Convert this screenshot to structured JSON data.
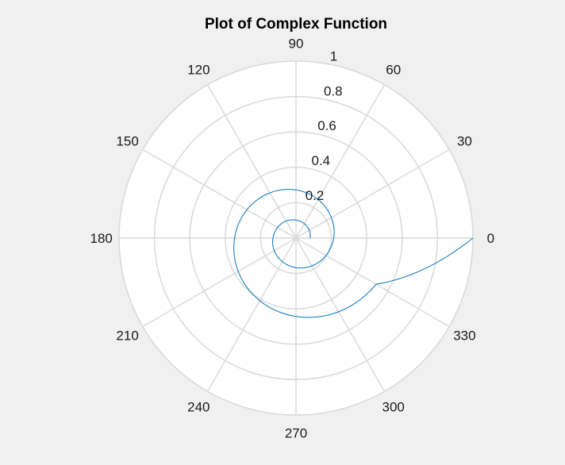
{
  "chart_data": {
    "type": "polar-line",
    "title": "Plot of Complex Function",
    "theta_ticks": [
      "0",
      "30",
      "60",
      "90",
      "120",
      "150",
      "180",
      "210",
      "240",
      "270",
      "300",
      "330"
    ],
    "theta_tick_degrees": [
      0,
      30,
      60,
      90,
      120,
      150,
      180,
      210,
      240,
      270,
      300,
      330
    ],
    "r_ticks": [
      0.2,
      0.4,
      0.6,
      0.8,
      1
    ],
    "r_tick_labels": [
      "0.2",
      "0.4",
      "0.6",
      "0.8",
      "1"
    ],
    "rlim": [
      0,
      1
    ],
    "grid": true,
    "series": [
      {
        "color": "#0072bd",
        "theta_deg": [
          -720,
          -690,
          -660,
          -630,
          -600,
          -570,
          -540,
          -510,
          -480,
          -450,
          -420,
          -390,
          -360,
          -330,
          -300,
          -270,
          -240,
          -210,
          -180,
          -150,
          -120,
          -90,
          -60,
          -30,
          0
        ],
        "r": [
          0.08,
          0.087,
          0.094,
          0.102,
          0.111,
          0.12,
          0.13,
          0.142,
          0.154,
          0.167,
          0.181,
          0.196,
          0.213,
          0.231,
          0.251,
          0.272,
          0.295,
          0.32,
          0.347,
          0.377,
          0.409,
          0.443,
          0.481,
          0.522,
          1.0
        ]
      }
    ]
  },
  "colors": {
    "background": "#f0f0f0",
    "axes_face": "#ffffff",
    "grid": "#d9d9d9",
    "line": "#0072bd"
  }
}
